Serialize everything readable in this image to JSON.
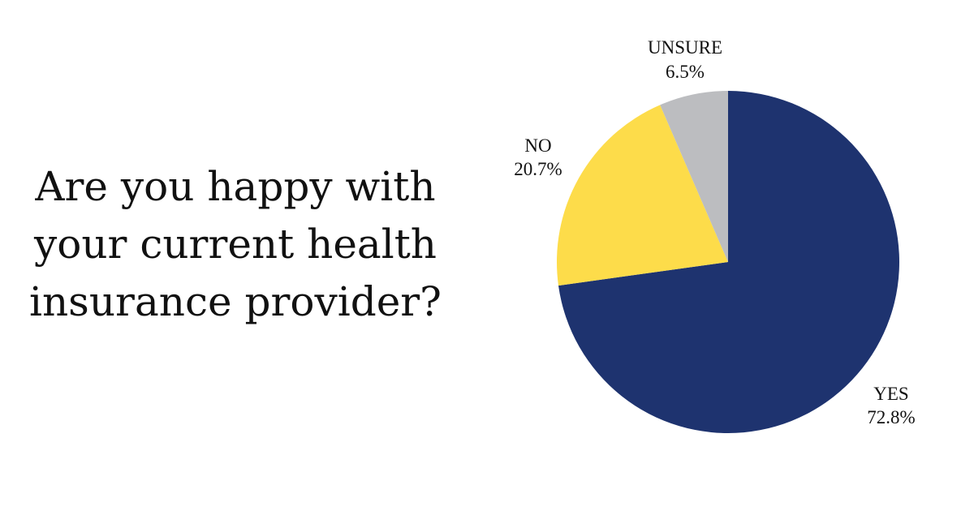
{
  "question": {
    "lines": [
      "Are you happy with",
      "your current health",
      "insurance provider?"
    ]
  },
  "chart_data": {
    "type": "pie",
    "title": "Are you happy with your current health insurance provider?",
    "slices": [
      {
        "label": "YES",
        "value": 72.8,
        "value_text": "72.8%",
        "color": "#1e336f"
      },
      {
        "label": "NO",
        "value": 20.7,
        "value_text": "20.7%",
        "color": "#fddc4a"
      },
      {
        "label": "UNSURE",
        "value": 6.5,
        "value_text": "6.5%",
        "color": "#bcbdc0"
      }
    ],
    "start": "12 o'clock",
    "direction": "clockwise",
    "legend": "none"
  }
}
